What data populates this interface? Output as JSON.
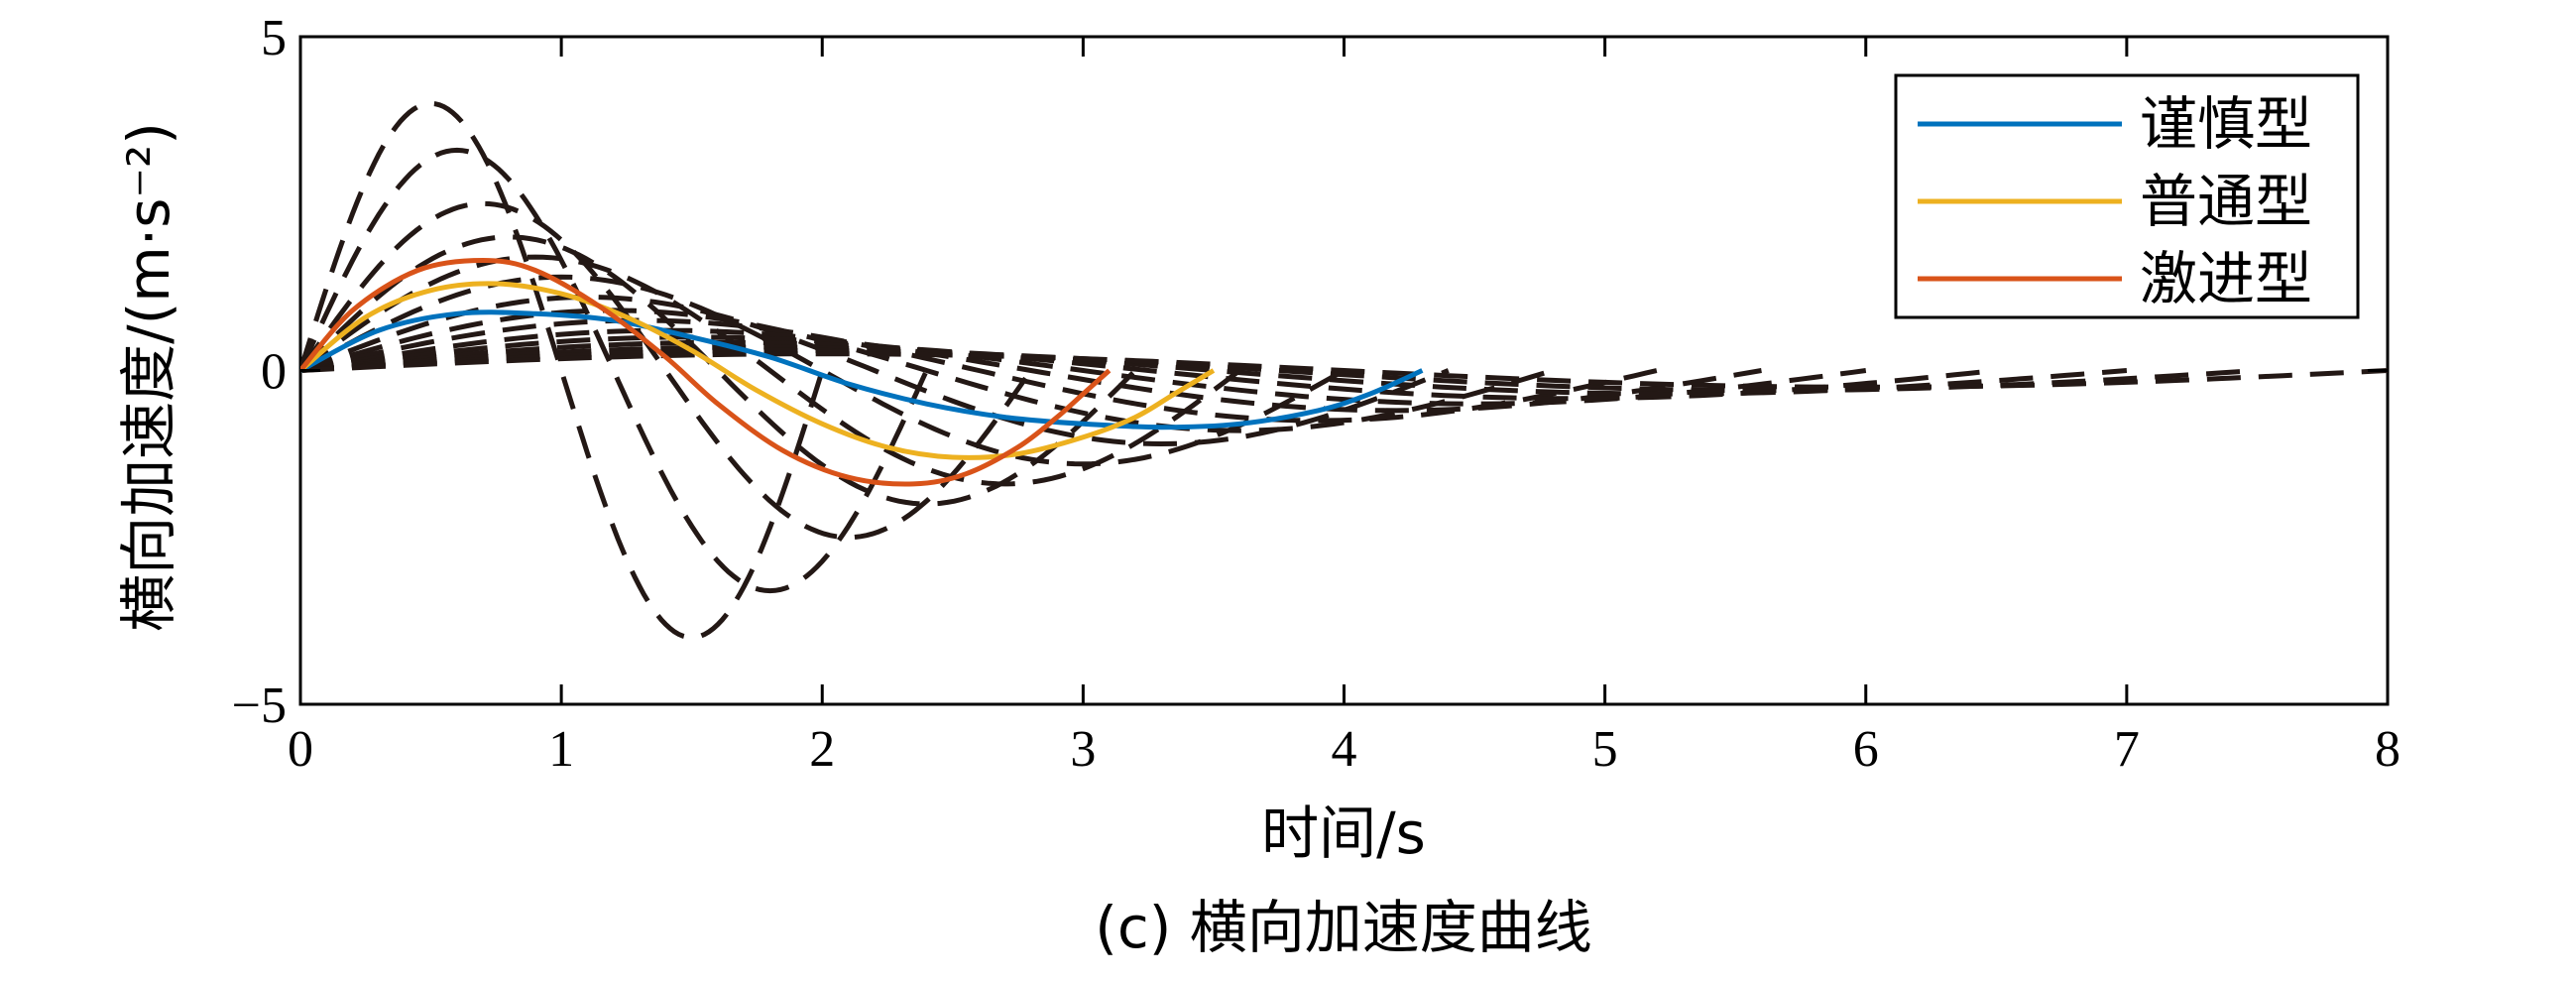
{
  "chart_data": {
    "type": "line",
    "xlabel": "时间/s",
    "ylabel": "横向加速度/(m·s⁻²)",
    "caption": "(c) 横向加速度曲线",
    "xlim": [
      0,
      8
    ],
    "ylim": [
      -5,
      5
    ],
    "xticks": [
      0,
      1,
      2,
      3,
      4,
      5,
      6,
      7,
      8
    ],
    "xtick_labels": [
      "0",
      "1",
      "2",
      "3",
      "4",
      "5",
      "6",
      "7",
      "8"
    ],
    "yticks": [
      5,
      0,
      -5
    ],
    "ytick_labels": [
      "5",
      "0",
      "−5"
    ],
    "grid": false,
    "legend_position": "top-right",
    "series": [
      {
        "name": "谨慎型",
        "color": "#0072BD",
        "x": [
          0,
          0.3,
          0.6,
          0.9,
          1.2,
          1.5,
          1.8,
          2.1,
          2.4,
          2.7,
          3.0,
          3.3,
          3.6,
          3.9,
          4.1,
          4.3
        ],
        "y": [
          0,
          0.6,
          0.85,
          0.85,
          0.75,
          0.5,
          0.2,
          -0.2,
          -0.5,
          -0.7,
          -0.8,
          -0.85,
          -0.8,
          -0.6,
          -0.35,
          0
        ]
      },
      {
        "name": "普通型",
        "color": "#EDB120",
        "x": [
          0,
          0.25,
          0.5,
          0.75,
          1.0,
          1.25,
          1.5,
          1.75,
          2.0,
          2.25,
          2.5,
          2.75,
          3.0,
          3.2,
          3.35,
          3.5
        ],
        "y": [
          0,
          0.8,
          1.2,
          1.3,
          1.15,
          0.8,
          0.3,
          -0.3,
          -0.8,
          -1.15,
          -1.3,
          -1.25,
          -1.0,
          -0.7,
          -0.35,
          0
        ]
      },
      {
        "name": "激进型",
        "color": "#D95319",
        "x": [
          0,
          0.2,
          0.45,
          0.7,
          0.9,
          1.15,
          1.4,
          1.6,
          1.85,
          2.1,
          2.35,
          2.55,
          2.75,
          2.9,
          3.0,
          3.1
        ],
        "y": [
          0,
          0.9,
          1.5,
          1.65,
          1.5,
          0.95,
          0.2,
          -0.5,
          -1.2,
          -1.6,
          -1.7,
          -1.55,
          -1.15,
          -0.7,
          -0.35,
          0
        ]
      }
    ],
    "background_series": [
      {
        "T": 2.0,
        "amp": 4.0
      },
      {
        "T": 2.4,
        "amp": 3.3
      },
      {
        "T": 2.8,
        "amp": 2.5
      },
      {
        "T": 3.2,
        "amp": 2.0
      },
      {
        "T": 3.6,
        "amp": 1.7
      },
      {
        "T": 4.0,
        "amp": 1.4
      },
      {
        "T": 4.4,
        "amp": 1.1
      },
      {
        "T": 4.8,
        "amp": 0.9
      },
      {
        "T": 5.2,
        "amp": 0.75
      },
      {
        "T": 5.6,
        "amp": 0.6
      },
      {
        "T": 6.0,
        "amp": 0.5
      },
      {
        "T": 6.5,
        "amp": 0.42
      },
      {
        "T": 7.0,
        "amp": 0.35
      },
      {
        "T": 7.5,
        "amp": 0.3
      },
      {
        "T": 8.0,
        "amp": 0.25
      }
    ],
    "background_style": {
      "color": "#231815",
      "dash": "dashed"
    }
  }
}
